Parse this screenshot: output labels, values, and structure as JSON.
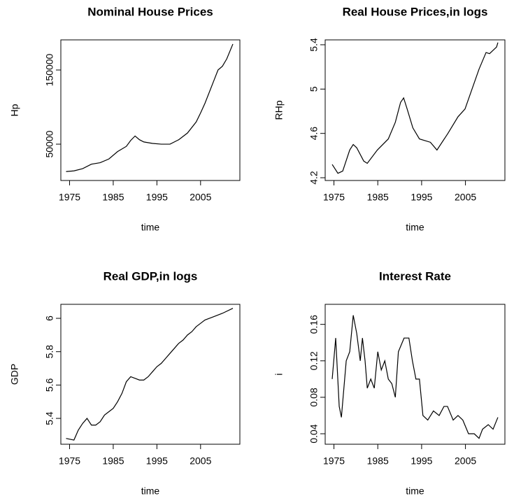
{
  "chart_data": [
    {
      "type": "line",
      "title": "Nominal House Prices",
      "xlabel": "time",
      "ylabel": "Hp",
      "color": "#000000",
      "x": [
        1974.2,
        1976,
        1978,
        1980,
        1982,
        1984,
        1986,
        1988,
        1989,
        1990,
        1991,
        1992,
        1994,
        1996,
        1998,
        2000,
        2002,
        2004,
        2005,
        2006,
        2008,
        2009,
        2010,
        2011,
        2012.4
      ],
      "values": [
        13000,
        14000,
        17000,
        23000,
        25000,
        30000,
        40000,
        47000,
        55000,
        61000,
        56000,
        53000,
        51000,
        50000,
        50000,
        56000,
        65000,
        80000,
        92000,
        105000,
        135000,
        150000,
        155000,
        165000,
        185000
      ],
      "xlim": [
        1973,
        2014
      ],
      "ylim": [
        1000,
        190600
      ],
      "xticks": [
        1975,
        1985,
        1995,
        2005
      ],
      "yticks": [
        50000,
        150000
      ]
    },
    {
      "type": "line",
      "title": "Real House Prices,in logs",
      "xlabel": "time",
      "ylabel": "RHp",
      "color": "#000000",
      "x": [
        1974.6,
        1975.9,
        1977,
        1978.6,
        1979.4,
        1980.2,
        1981.8,
        1982.6,
        1984.9,
        1987.4,
        1989,
        1990.2,
        1990.9,
        1991.7,
        1993,
        1994.5,
        1997,
        1998.5,
        2001,
        2003.3,
        2004.9,
        2006.5,
        2008.1,
        2009.7,
        2010.5,
        2012.1,
        2012.4
      ],
      "values": [
        4.32,
        4.24,
        4.26,
        4.45,
        4.5,
        4.47,
        4.35,
        4.33,
        4.45,
        4.55,
        4.7,
        4.88,
        4.92,
        4.82,
        4.65,
        4.55,
        4.52,
        4.45,
        4.6,
        4.75,
        4.82,
        5.0,
        5.18,
        5.33,
        5.32,
        5.38,
        5.42
      ],
      "xlim": [
        1973,
        2014
      ],
      "ylim": [
        4.175,
        5.444
      ],
      "xticks": [
        1975,
        1985,
        1995,
        2005
      ],
      "yticks": [
        4.2,
        4.6,
        5.0,
        5.4
      ]
    },
    {
      "type": "line",
      "title": "Real GDP,in logs",
      "xlabel": "time",
      "ylabel": "GDP",
      "color": "#000000",
      "x": [
        1974.2,
        1976,
        1977,
        1978,
        1979,
        1980,
        1981,
        1982,
        1983,
        1984,
        1985,
        1986,
        1987,
        1988,
        1989,
        1990,
        1991,
        1992,
        1993,
        1994,
        1995,
        1996,
        1997,
        1998,
        1999,
        2000,
        2001,
        2002,
        2003,
        2004,
        2005,
        2006,
        2007,
        2008,
        2010,
        2012.4
      ],
      "values": [
        5.28,
        5.27,
        5.33,
        5.37,
        5.4,
        5.36,
        5.36,
        5.38,
        5.42,
        5.44,
        5.46,
        5.5,
        5.55,
        5.62,
        5.65,
        5.64,
        5.63,
        5.63,
        5.65,
        5.68,
        5.71,
        5.73,
        5.76,
        5.79,
        5.82,
        5.85,
        5.87,
        5.9,
        5.92,
        5.95,
        5.97,
        5.99,
        6.0,
        6.01,
        6.03,
        6.06
      ],
      "xlim": [
        1973,
        2014
      ],
      "ylim": [
        5.245,
        6.084
      ],
      "xticks": [
        1975,
        1985,
        1995,
        2005
      ],
      "yticks": [
        5.4,
        5.6,
        5.8,
        6.0
      ]
    },
    {
      "type": "line",
      "title": "Interest Rate",
      "xlabel": "time",
      "ylabel": "i",
      "color": "#000000",
      "x": [
        1974.6,
        1975.4,
        1976.2,
        1976.7,
        1977.8,
        1978.6,
        1979.4,
        1980.2,
        1981.0,
        1981.5,
        1982.1,
        1982.6,
        1983.4,
        1984.2,
        1985.0,
        1985.8,
        1986.6,
        1987.4,
        1988.2,
        1989.0,
        1989.7,
        1991.0,
        1992.1,
        1992.9,
        1993.7,
        1994.5,
        1995.3,
        1996.4,
        1997.7,
        1999.0,
        2000.1,
        2000.9,
        2002.2,
        2003.3,
        2004.4,
        2005.7,
        2007.0,
        2008.1,
        2008.9,
        2010.2,
        2011.3,
        2012.4
      ],
      "values": [
        0.1,
        0.145,
        0.07,
        0.058,
        0.12,
        0.13,
        0.17,
        0.15,
        0.12,
        0.145,
        0.12,
        0.09,
        0.1,
        0.09,
        0.13,
        0.11,
        0.12,
        0.1,
        0.095,
        0.08,
        0.13,
        0.145,
        0.145,
        0.12,
        0.1,
        0.1,
        0.06,
        0.055,
        0.065,
        0.06,
        0.07,
        0.07,
        0.055,
        0.06,
        0.055,
        0.04,
        0.04,
        0.035,
        0.045,
        0.05,
        0.045,
        0.058
      ],
      "xlim": [
        1973,
        2014
      ],
      "ylim": [
        0.0285,
        0.182
      ],
      "xticks": [
        1975,
        1985,
        1995,
        2005
      ],
      "yticks": [
        0.04,
        0.08,
        0.12,
        0.16
      ]
    }
  ]
}
